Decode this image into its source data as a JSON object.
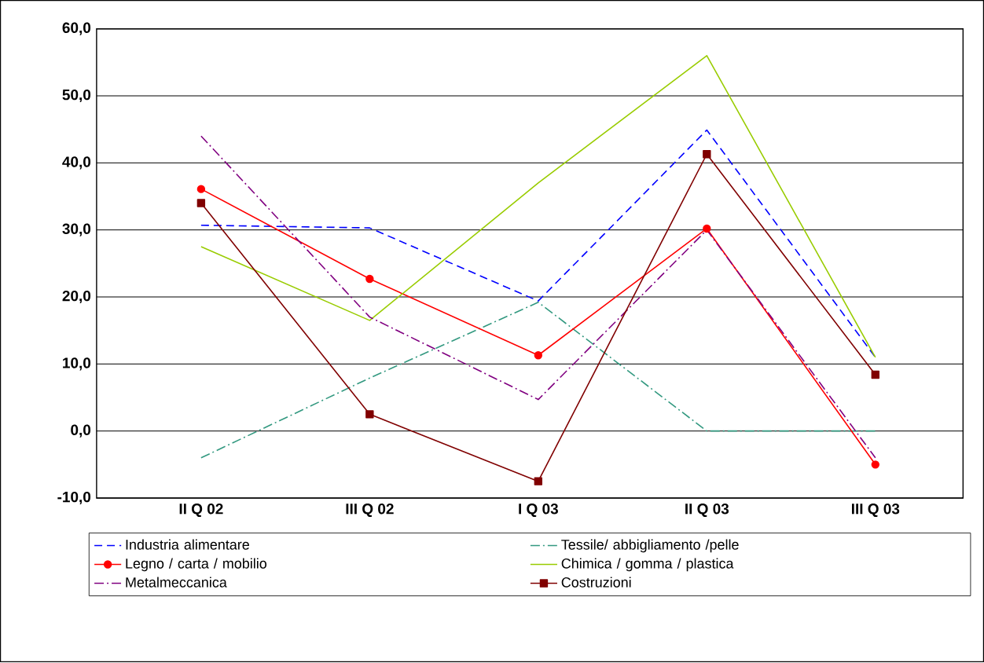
{
  "chart_data": {
    "type": "line",
    "categories": [
      "II Q 02",
      "III Q 02",
      "I Q 03",
      "II Q 03",
      "III Q 03"
    ],
    "ylim": [
      -10,
      60
    ],
    "yticks": [
      {
        "value": -10,
        "label": "-10,0"
      },
      {
        "value": 0,
        "label": "0,0"
      },
      {
        "value": 10,
        "label": "10,0"
      },
      {
        "value": 20,
        "label": "20,0"
      },
      {
        "value": 30,
        "label": "30,0"
      },
      {
        "value": 40,
        "label": "40,0"
      },
      {
        "value": 50,
        "label": "50,0"
      },
      {
        "value": 60,
        "label": "60,0"
      }
    ],
    "grid": "y",
    "legend": "bottom",
    "series": [
      {
        "name": "Industria alimentare",
        "color": "#0000ff",
        "line_style": "dashed",
        "marker": "none",
        "values": [
          30.7,
          30.3,
          19.4,
          44.9,
          11
        ]
      },
      {
        "name": "Tessile/ abbigliamento /pelle",
        "color": "#339980",
        "line_style": "dashdot",
        "marker": "none",
        "values": [
          -4,
          7.9,
          19.2,
          0,
          0
        ]
      },
      {
        "name": "Legno / carta / mobilio",
        "color": "#ff0000",
        "line_style": "solid",
        "marker": "circle",
        "values": [
          36.1,
          22.7,
          11.3,
          30.2,
          -5
        ]
      },
      {
        "name": "Chimica / gomma / plastica",
        "color": "#99cc00",
        "line_style": "solid",
        "marker": "none",
        "values": [
          27.5,
          16.5,
          37,
          56,
          11
        ]
      },
      {
        "name": "Metalmeccanica",
        "color": "#800080",
        "line_style": "dashdot",
        "marker": "none",
        "values": [
          44,
          17,
          4.7,
          30,
          -4
        ]
      },
      {
        "name": "Costruzioni",
        "color": "#800000",
        "line_style": "solid",
        "marker": "square",
        "values": [
          34,
          2.5,
          -7.5,
          41.3,
          8.4
        ]
      }
    ]
  }
}
